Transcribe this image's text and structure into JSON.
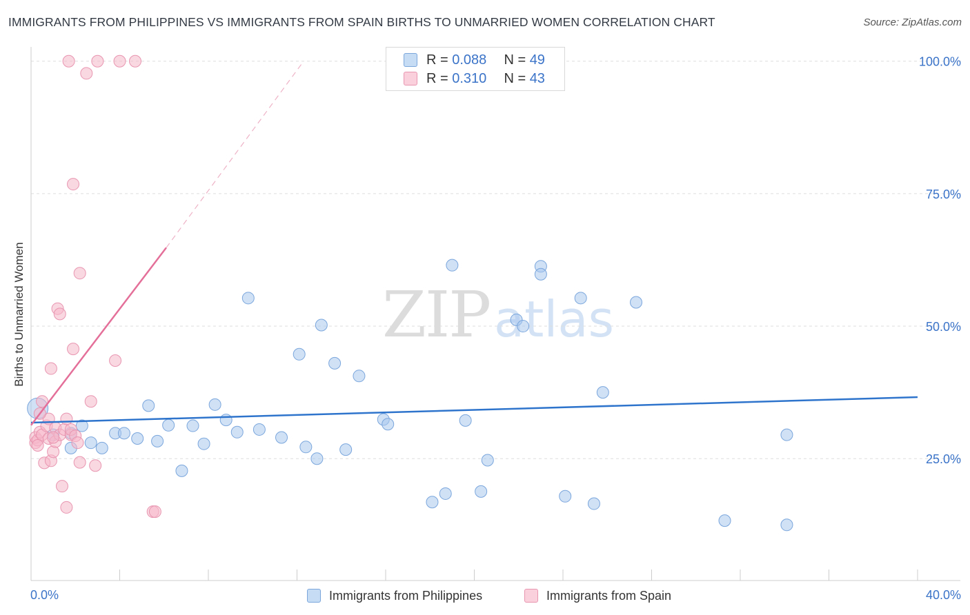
{
  "title": "IMMIGRANTS FROM PHILIPPINES VS IMMIGRANTS FROM SPAIN BIRTHS TO UNMARRIED WOMEN CORRELATION CHART",
  "source": "Source: ZipAtlas.com",
  "watermark": {
    "zip": "ZIP",
    "atlas": "atlas"
  },
  "legend": {
    "r_label": "R =",
    "n_label": "N =",
    "series1": {
      "r": "0.088",
      "n": "49"
    },
    "series2": {
      "r": "0.310",
      "n": "43"
    }
  },
  "colors": {
    "blue_fill": "#a9c8ee",
    "blue_stroke": "#7aa6dc",
    "blue_line": "#2e74cc",
    "pink_fill": "#f6b8cb",
    "pink_stroke": "#e895b0",
    "pink_line": "#e4709a",
    "tick_label": "#3a73c8",
    "grid": "#dddddd"
  },
  "chart_data": {
    "type": "scatter",
    "xlabel": "",
    "ylabel": "Births to Unmarried Women",
    "xlim": [
      0,
      40
    ],
    "ylim": [
      2,
      104
    ],
    "x_tick_labels": [
      {
        "value": 0,
        "label": "0.0%"
      },
      {
        "value": 40,
        "label": "40.0%"
      }
    ],
    "x_minor_ticks": [
      0,
      4,
      8,
      12,
      16,
      20,
      24,
      28,
      32,
      36,
      40
    ],
    "y_tick_labels": [
      {
        "value": 25,
        "label": "25.0%"
      },
      {
        "value": 50,
        "label": "50.0%"
      },
      {
        "value": 75,
        "label": "75.0%"
      },
      {
        "value": 100,
        "label": "100.0%"
      }
    ],
    "y_grid": [
      25,
      50,
      75,
      100
    ],
    "series": [
      {
        "name": "Immigrants from Philippines",
        "color": "#a9c8ee",
        "points": [
          [
            0.3,
            34.5
          ],
          [
            1.0,
            29.5
          ],
          [
            1.8,
            29.8
          ],
          [
            1.8,
            27.0
          ],
          [
            2.3,
            31.2
          ],
          [
            2.7,
            28.0
          ],
          [
            3.2,
            27.0
          ],
          [
            3.8,
            29.8
          ],
          [
            4.2,
            29.8
          ],
          [
            4.8,
            28.8
          ],
          [
            5.3,
            35.0
          ],
          [
            5.7,
            28.3
          ],
          [
            6.2,
            31.3
          ],
          [
            6.8,
            22.7
          ],
          [
            7.3,
            31.2
          ],
          [
            7.8,
            27.8
          ],
          [
            8.3,
            35.2
          ],
          [
            8.8,
            32.3
          ],
          [
            9.3,
            30.0
          ],
          [
            9.8,
            55.3
          ],
          [
            10.3,
            30.5
          ],
          [
            11.3,
            29.0
          ],
          [
            12.1,
            44.7
          ],
          [
            12.4,
            27.2
          ],
          [
            13.1,
            50.2
          ],
          [
            12.9,
            25.0
          ],
          [
            13.7,
            43.0
          ],
          [
            14.2,
            26.7
          ],
          [
            14.8,
            40.6
          ],
          [
            15.9,
            32.4
          ],
          [
            16.1,
            31.5
          ],
          [
            18.1,
            16.8
          ],
          [
            18.7,
            18.4
          ],
          [
            19.0,
            61.5
          ],
          [
            19.6,
            32.2
          ],
          [
            20.3,
            18.8
          ],
          [
            20.6,
            24.7
          ],
          [
            21.9,
            51.2
          ],
          [
            22.2,
            50.0
          ],
          [
            23.0,
            61.3
          ],
          [
            23.0,
            59.8
          ],
          [
            24.1,
            17.9
          ],
          [
            24.8,
            55.3
          ],
          [
            25.4,
            16.5
          ],
          [
            25.8,
            37.5
          ],
          [
            27.3,
            54.5
          ],
          [
            31.3,
            13.3
          ],
          [
            34.1,
            29.5
          ],
          [
            34.1,
            12.5
          ]
        ],
        "trend": {
          "x": [
            0,
            40
          ],
          "y": [
            31.8,
            36.6
          ]
        }
      },
      {
        "name": "Immigrants from Spain",
        "color": "#f6b8cb",
        "points": [
          [
            0.2,
            28.0
          ],
          [
            0.2,
            29.0
          ],
          [
            0.3,
            28.5
          ],
          [
            0.4,
            30.0
          ],
          [
            0.5,
            29.5
          ],
          [
            0.5,
            35.8
          ],
          [
            0.6,
            24.2
          ],
          [
            0.7,
            31.2
          ],
          [
            0.8,
            32.5
          ],
          [
            0.8,
            28.8
          ],
          [
            0.9,
            24.6
          ],
          [
            0.9,
            42.0
          ],
          [
            1.0,
            26.3
          ],
          [
            1.1,
            30.8
          ],
          [
            1.1,
            28.2
          ],
          [
            1.2,
            53.3
          ],
          [
            1.3,
            52.3
          ],
          [
            1.3,
            29.5
          ],
          [
            1.4,
            19.8
          ],
          [
            1.5,
            30.5
          ],
          [
            1.6,
            32.5
          ],
          [
            1.6,
            15.8
          ],
          [
            1.7,
            100.0
          ],
          [
            1.8,
            29.5
          ],
          [
            1.8,
            30.5
          ],
          [
            1.9,
            76.8
          ],
          [
            1.9,
            45.7
          ],
          [
            2.0,
            29.3
          ],
          [
            2.1,
            28.0
          ],
          [
            2.2,
            60.0
          ],
          [
            2.2,
            24.3
          ],
          [
            2.5,
            97.7
          ],
          [
            2.7,
            35.8
          ],
          [
            2.9,
            23.7
          ],
          [
            3.0,
            100.0
          ],
          [
            3.8,
            43.5
          ],
          [
            4.0,
            100.0
          ],
          [
            4.7,
            100.0
          ],
          [
            5.5,
            15.0
          ],
          [
            5.6,
            15.0
          ],
          [
            0.3,
            27.5
          ],
          [
            0.4,
            33.5
          ],
          [
            1.0,
            29.0
          ]
        ],
        "trend": {
          "x": [
            0,
            6.1
          ],
          "y": [
            31.3,
            64.8
          ]
        },
        "trend_dashed": {
          "x": [
            6.1,
            12.3
          ],
          "y": [
            64.8,
            100.0
          ]
        }
      }
    ]
  }
}
